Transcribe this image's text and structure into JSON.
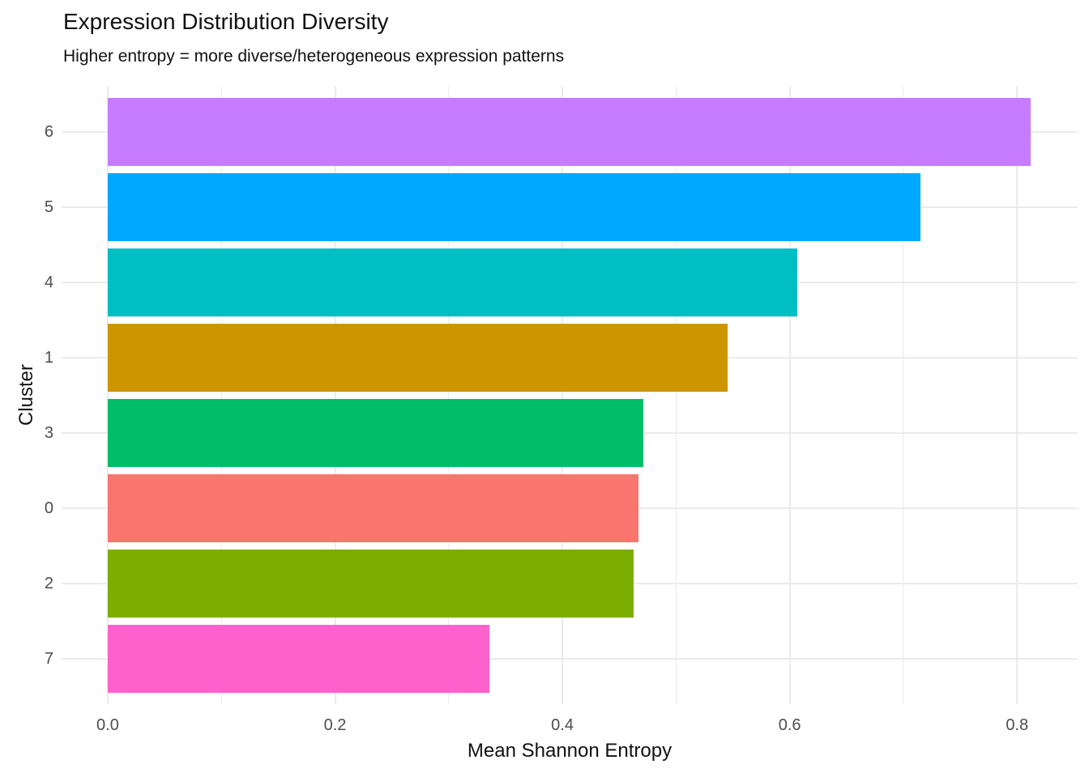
{
  "chart_data": {
    "type": "bar",
    "orientation": "horizontal",
    "title": "Expression Distribution Diversity",
    "subtitle": "Higher entropy = more diverse/heterogeneous expression patterns",
    "xlabel": "Mean Shannon Entropy",
    "ylabel": "Cluster",
    "categories": [
      "6",
      "5",
      "4",
      "1",
      "3",
      "0",
      "2",
      "7"
    ],
    "values": [
      0.812,
      0.715,
      0.607,
      0.545,
      0.471,
      0.467,
      0.463,
      0.336
    ],
    "bar_colors": [
      "#C77CFF",
      "#00A9FF",
      "#00BFC4",
      "#CD9600",
      "#00BE67",
      "#F8766D",
      "#7CAE00",
      "#FF61CC"
    ],
    "x_ticks": {
      "major": [
        0.0,
        0.2,
        0.4,
        0.6,
        0.8
      ],
      "major_labels": [
        "0.0",
        "0.2",
        "0.4",
        "0.6",
        "0.8"
      ],
      "minor": [
        0.1,
        0.3,
        0.5,
        0.7
      ]
    },
    "xlim_visible": [
      0.0,
      0.8
    ],
    "grid": {
      "vertical": "major+minor",
      "horizontal": "major-at-category-centers"
    },
    "legend_position": "none",
    "style": {
      "grid_color": "#EBEBEB",
      "axis_text_color": "#4D4D4D",
      "text_color": "#111111",
      "background": "#FFFFFF"
    }
  }
}
